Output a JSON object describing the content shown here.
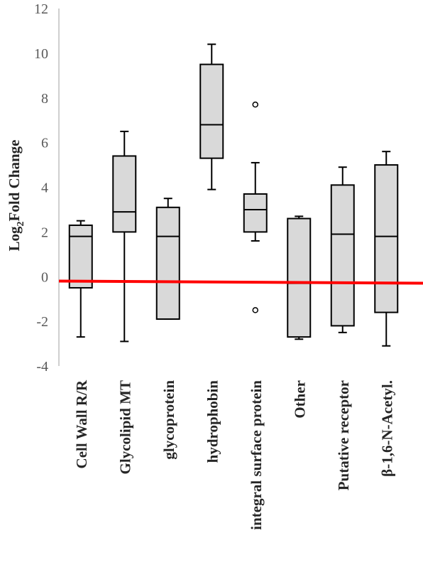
{
  "chart_data": {
    "type": "box",
    "ylabel_main": "Log",
    "ylabel_sub": "2",
    "ylabel_rest": "Fold Change",
    "xlabel": "",
    "ylim": [
      -4,
      12
    ],
    "yticks": [
      12,
      10,
      8,
      6,
      4,
      2,
      0,
      -2,
      -4
    ],
    "grid": false,
    "reference_line": {
      "y": -0.2,
      "color": "#ff0000"
    },
    "box_fill": "#d9d9d9",
    "box_stroke": "#000000",
    "categories": [
      "Cell Wall R/R",
      "Glycolipid MT",
      "glycoprotein",
      "hydrophobin",
      "integral surface protein",
      "Other",
      "Putative receptor",
      "β-1,6-N-Acetyl."
    ],
    "boxes": [
      {
        "category": "Cell Wall R/R",
        "min": -2.7,
        "q1": -0.5,
        "median": 1.8,
        "q3": 2.3,
        "max": 2.5,
        "outliers": []
      },
      {
        "category": "Glycolipid MT",
        "min": -2.9,
        "q1": 2.0,
        "median": 2.9,
        "q3": 5.4,
        "max": 6.5,
        "outliers": []
      },
      {
        "category": "glycoprotein",
        "min": -1.9,
        "q1": -1.9,
        "median": 1.8,
        "q3": 3.1,
        "max": 3.5,
        "outliers": []
      },
      {
        "category": "hydrophobin",
        "min": 3.9,
        "q1": 5.3,
        "median": 6.8,
        "q3": 9.5,
        "max": 10.4,
        "outliers": []
      },
      {
        "category": "integral surface protein",
        "min": 1.6,
        "q1": 2.0,
        "median": 3.0,
        "q3": 3.7,
        "max": 5.1,
        "outliers": [
          7.7,
          -1.5
        ]
      },
      {
        "category": "Other",
        "min": -2.8,
        "q1": -2.7,
        "median": -0.3,
        "q3": 2.6,
        "max": 2.7,
        "outliers": []
      },
      {
        "category": "Putative receptor",
        "min": -2.5,
        "q1": -2.2,
        "median": 1.9,
        "q3": 4.1,
        "max": 4.9,
        "outliers": []
      },
      {
        "category": "β-1,6-N-Acetyl.",
        "min": -3.1,
        "q1": -1.6,
        "median": 1.8,
        "q3": 5.0,
        "max": 5.6,
        "outliers": []
      }
    ]
  }
}
